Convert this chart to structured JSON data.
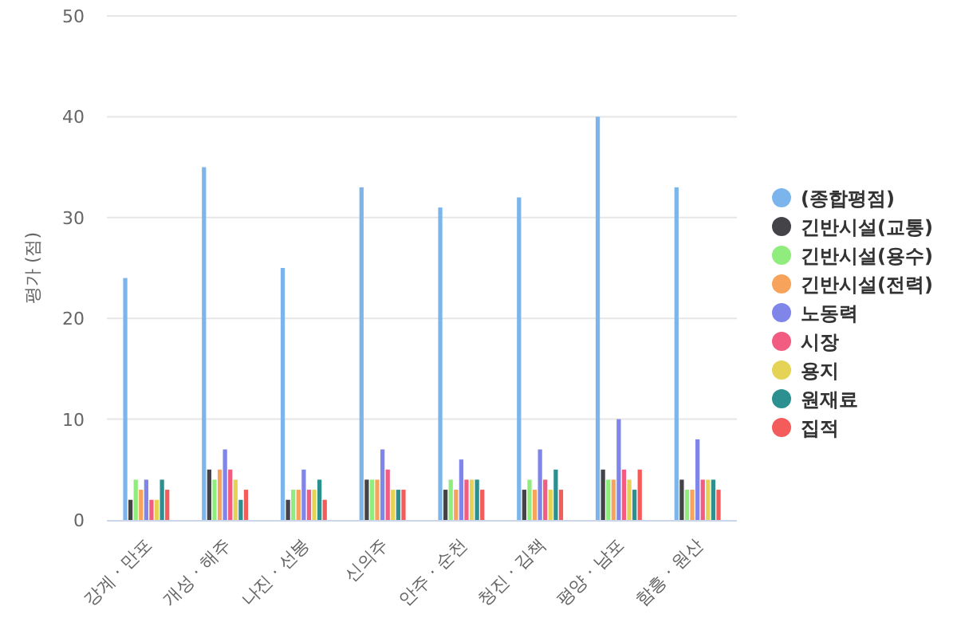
{
  "chart_data": {
    "type": "bar",
    "ylabel": "평가 (점)",
    "categories": [
      "강계 · 만포",
      "개성 · 해주",
      "나진 · 선봉",
      "신의주",
      "안주 · 순천",
      "청진 · 김책",
      "평양 · 남포",
      "함흥 · 원산"
    ],
    "series": [
      {
        "name": "(종합평점)",
        "color": "#7cb5ec",
        "values": [
          24,
          35,
          25,
          33,
          31,
          32,
          40,
          33
        ]
      },
      {
        "name": "긴반시설(교통)",
        "color": "#434348",
        "values": [
          2,
          5,
          2,
          4,
          3,
          3,
          5,
          4
        ]
      },
      {
        "name": "긴반시설(용수)",
        "color": "#90ed7d",
        "values": [
          4,
          4,
          3,
          4,
          4,
          4,
          4,
          3
        ]
      },
      {
        "name": "긴반시설(전력)",
        "color": "#f7a35c",
        "values": [
          3,
          5,
          3,
          4,
          3,
          3,
          4,
          3
        ]
      },
      {
        "name": "노동력",
        "color": "#8085e9",
        "values": [
          4,
          7,
          5,
          7,
          6,
          7,
          10,
          8
        ]
      },
      {
        "name": "시장",
        "color": "#f15c80",
        "values": [
          2,
          5,
          3,
          5,
          4,
          4,
          5,
          4
        ]
      },
      {
        "name": "용지",
        "color": "#e4d354",
        "values": [
          2,
          4,
          3,
          3,
          4,
          3,
          4,
          4
        ]
      },
      {
        "name": "원재료",
        "color": "#2b908f",
        "values": [
          4,
          2,
          4,
          3,
          4,
          5,
          3,
          4
        ]
      },
      {
        "name": "집적",
        "color": "#f45b5b",
        "values": [
          3,
          3,
          2,
          3,
          3,
          3,
          5,
          3
        ]
      }
    ],
    "ylim": [
      0,
      50
    ],
    "yticks": [
      0,
      10,
      20,
      30,
      40,
      50
    ],
    "grid": "y",
    "legend": "right"
  }
}
